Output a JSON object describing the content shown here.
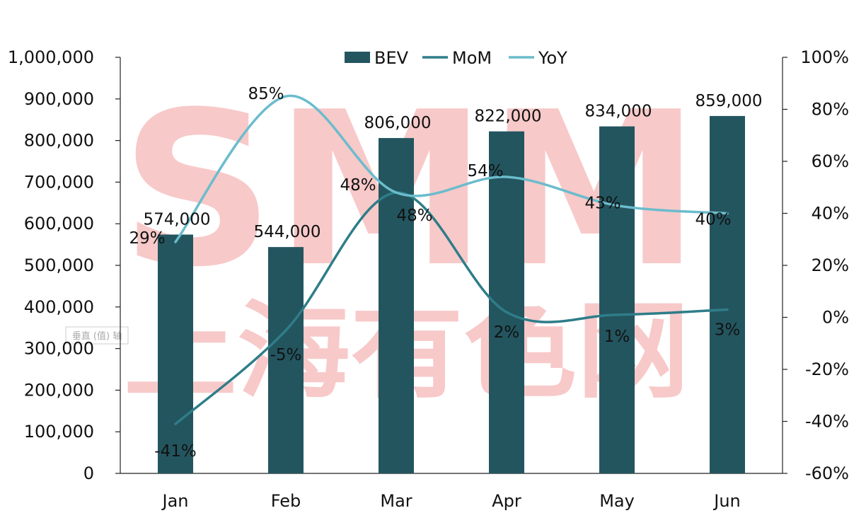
{
  "chart_data": {
    "type": "bar",
    "categories": [
      "Jan",
      "Feb",
      "Mar",
      "Apr",
      "May",
      "Jun"
    ],
    "series": [
      {
        "name": "BEV",
        "type": "bar",
        "axis": "left",
        "color": "#23555f",
        "values": [
          574000,
          544000,
          806000,
          822000,
          834000,
          859000
        ],
        "labels": [
          "574,000",
          "544,000",
          "806,000",
          "822,000",
          "834,000",
          "859,000"
        ]
      },
      {
        "name": "MoM",
        "type": "line",
        "axis": "right",
        "color": "#2e7d89",
        "values": [
          -41,
          -5,
          48,
          2,
          1,
          3
        ],
        "labels": [
          "-41%",
          "-5%",
          "48%",
          "2%",
          "1%",
          "3%"
        ]
      },
      {
        "name": "YoY",
        "type": "line",
        "axis": "right",
        "color": "#6bbccc",
        "values": [
          29,
          85,
          48,
          54,
          43,
          40
        ],
        "labels": [
          "29%",
          "85%",
          "48%",
          "54%",
          "43%",
          "40%"
        ]
      }
    ],
    "y_left": {
      "ylim": [
        0,
        1000000
      ],
      "ticks": [
        "0",
        "100,000",
        "200,000",
        "300,000",
        "400,000",
        "500,000",
        "600,000",
        "700,000",
        "800,000",
        "900,000",
        "1,000,000"
      ]
    },
    "y_right": {
      "ylim": [
        -60,
        100
      ],
      "ticks": [
        "-60%",
        "-40%",
        "-20%",
        "0%",
        "20%",
        "40%",
        "60%",
        "80%",
        "100%"
      ]
    },
    "legend": "top-center",
    "grid": false
  },
  "watermark": {
    "logo": "SMM",
    "text": "上海有色网",
    "stamp": "垂直 (值) 轴",
    "color": "#f08080"
  }
}
